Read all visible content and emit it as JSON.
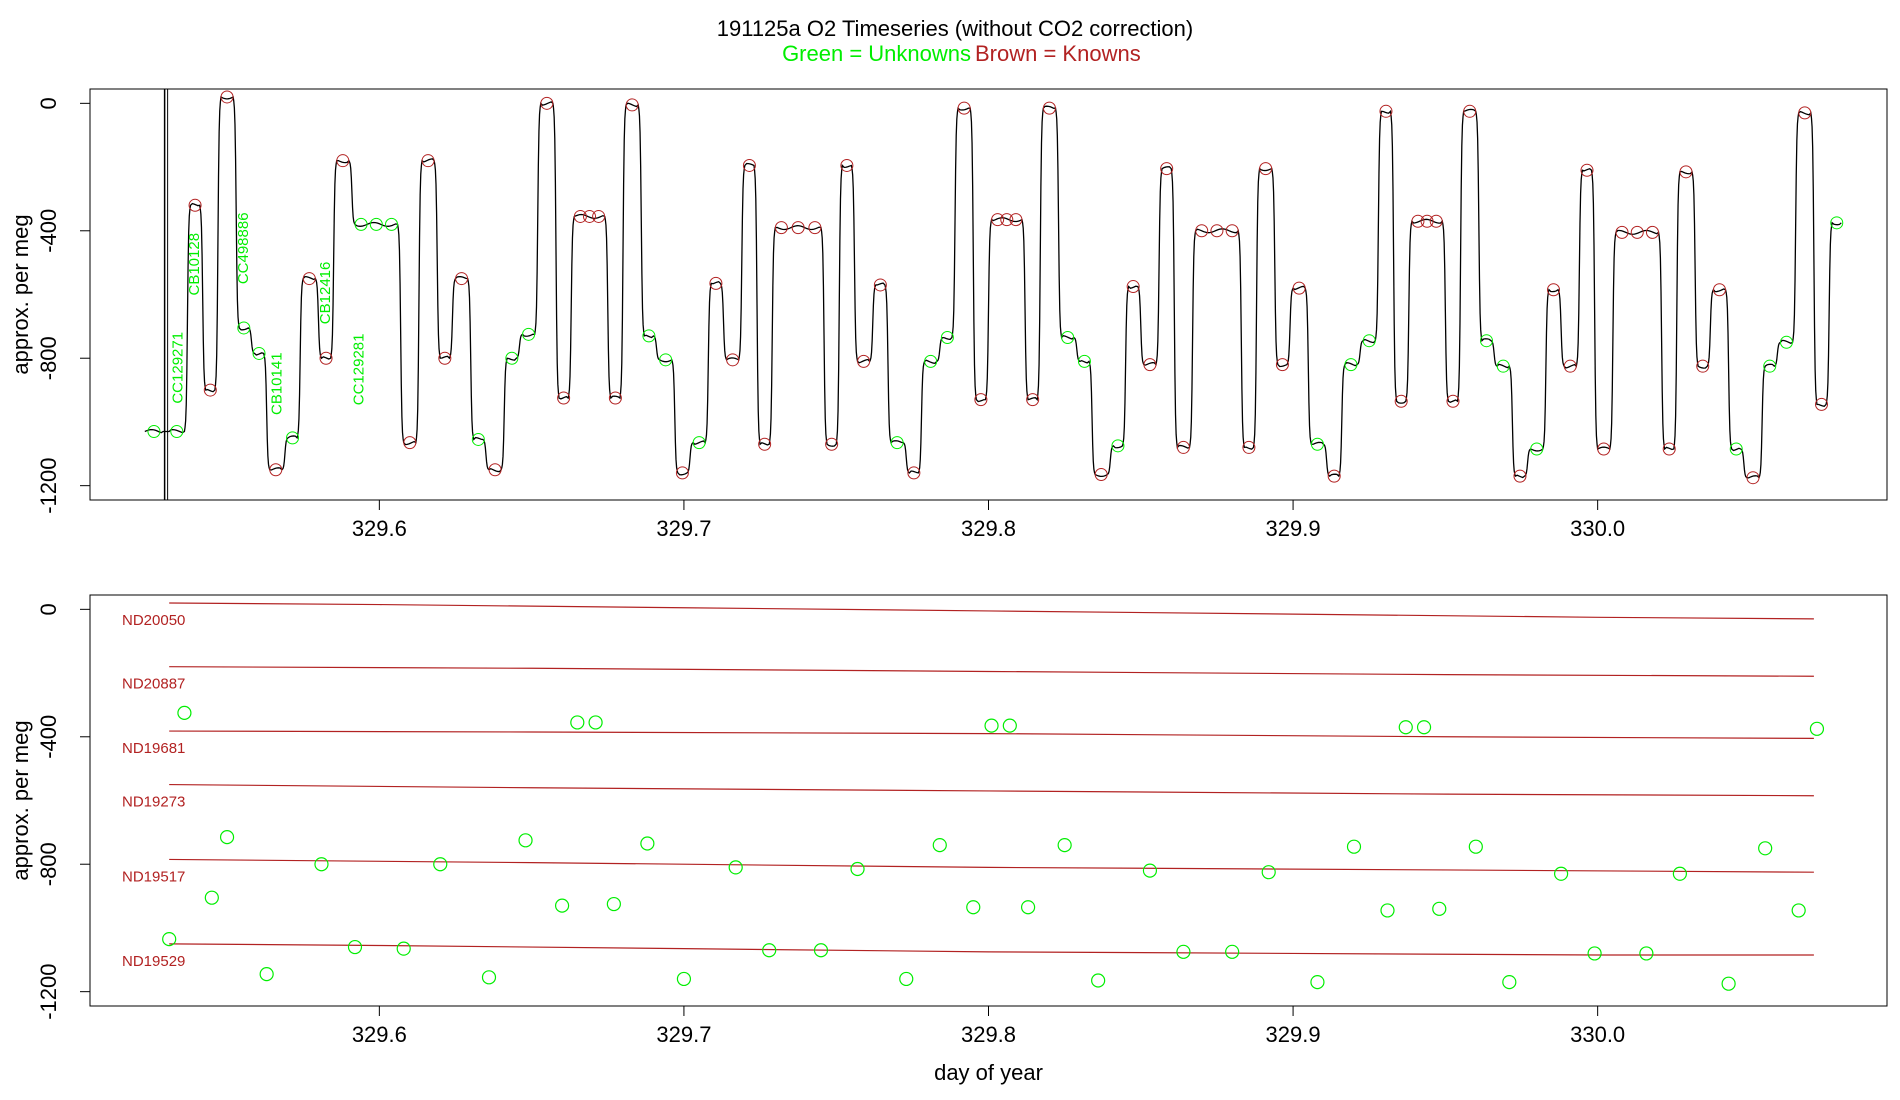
{
  "title": {
    "main": "191125a   O2 Timeseries (without CO2 correction)",
    "legend_green": "Green = Unknowns",
    "legend_brown": "Brown = Knowns"
  },
  "colors": {
    "unknown": "#00ee00",
    "known": "#b22222",
    "trace": "#000000",
    "axis": "#000000"
  },
  "chart_data": [
    {
      "type": "line",
      "title": "191125a   O2 Timeseries (without CO2 correction)",
      "xlabel": "",
      "ylabel": "approx. per meg",
      "xlim": [
        329.505,
        330.095
      ],
      "ylim": [
        -1245,
        45
      ],
      "xticks": [
        329.6,
        329.7,
        329.8,
        329.9,
        330.0
      ],
      "xtick_labels": [
        "329.6",
        "329.7",
        "329.8",
        "329.9",
        "330.0"
      ],
      "yticks": [
        0,
        -400,
        -800,
        -1200
      ],
      "ytick_labels": [
        "0",
        "-400",
        "-800",
        "-1200"
      ],
      "segments": [
        [
          329.523,
          329.529,
          -1030
        ],
        [
          329.531,
          329.536,
          -1030
        ],
        [
          329.538,
          329.541,
          -320
        ],
        [
          329.543,
          329.546,
          -900
        ],
        [
          329.548,
          329.552,
          20
        ],
        [
          329.554,
          329.557,
          -705
        ],
        [
          329.559,
          329.562,
          -785
        ],
        [
          329.564,
          329.568,
          -1150
        ],
        [
          329.57,
          329.573,
          -1050
        ],
        [
          329.575,
          329.579,
          -550
        ],
        [
          329.581,
          329.584,
          -800
        ],
        [
          329.586,
          329.59,
          -180
        ],
        [
          329.592,
          329.606,
          -380
        ],
        [
          329.608,
          329.612,
          -1065
        ],
        [
          329.614,
          329.618,
          -180
        ],
        [
          329.62,
          329.623,
          -800
        ],
        [
          329.625,
          329.629,
          -550
        ],
        [
          329.631,
          329.634,
          -1055
        ],
        [
          329.636,
          329.64,
          -1150
        ],
        [
          329.642,
          329.645,
          -800
        ],
        [
          329.647,
          329.651,
          -725
        ],
        [
          329.653,
          329.657,
          0
        ],
        [
          329.659,
          329.662,
          -925
        ],
        [
          329.664,
          329.674,
          -355
        ],
        [
          329.676,
          329.679,
          -925
        ],
        [
          329.681,
          329.685,
          -5
        ],
        [
          329.687,
          329.69,
          -730
        ],
        [
          329.692,
          329.696,
          -805
        ],
        [
          329.698,
          329.701,
          -1160
        ],
        [
          329.703,
          329.707,
          -1065
        ],
        [
          329.709,
          329.712,
          -565
        ],
        [
          329.714,
          329.718,
          -805
        ],
        [
          329.72,
          329.723,
          -195
        ],
        [
          329.725,
          329.728,
          -1070
        ],
        [
          329.73,
          329.745,
          -390
        ],
        [
          329.747,
          329.75,
          -1070
        ],
        [
          329.752,
          329.755,
          -195
        ],
        [
          329.757,
          329.761,
          -810
        ],
        [
          329.763,
          329.766,
          -570
        ],
        [
          329.768,
          329.772,
          -1065
        ],
        [
          329.774,
          329.777,
          -1160
        ],
        [
          329.779,
          329.783,
          -810
        ],
        [
          329.785,
          329.788,
          -735
        ],
        [
          329.79,
          329.794,
          -15
        ],
        [
          329.796,
          329.799,
          -930
        ],
        [
          329.801,
          329.811,
          -365
        ],
        [
          329.813,
          329.816,
          -930
        ],
        [
          329.818,
          329.822,
          -15
        ],
        [
          329.824,
          329.828,
          -735
        ],
        [
          329.83,
          329.833,
          -810
        ],
        [
          329.835,
          329.839,
          -1165
        ],
        [
          329.841,
          329.844,
          -1075
        ],
        [
          329.846,
          329.849,
          -575
        ],
        [
          329.851,
          329.855,
          -820
        ],
        [
          329.857,
          329.86,
          -205
        ],
        [
          329.862,
          329.866,
          -1080
        ],
        [
          329.868,
          329.882,
          -400
        ],
        [
          329.884,
          329.887,
          -1080
        ],
        [
          329.889,
          329.893,
          -205
        ],
        [
          329.895,
          329.898,
          -820
        ],
        [
          329.9,
          329.904,
          -580
        ],
        [
          329.906,
          329.91,
          -1070
        ],
        [
          329.912,
          329.915,
          -1170
        ],
        [
          329.917,
          329.921,
          -820
        ],
        [
          329.923,
          329.927,
          -745
        ],
        [
          329.929,
          329.932,
          -25
        ],
        [
          329.934,
          329.937,
          -935
        ],
        [
          329.939,
          329.949,
          -370
        ],
        [
          329.951,
          329.954,
          -935
        ],
        [
          329.956,
          329.96,
          -25
        ],
        [
          329.962,
          329.965,
          -745
        ],
        [
          329.967,
          329.971,
          -825
        ],
        [
          329.973,
          329.976,
          -1170
        ],
        [
          329.978,
          329.982,
          -1085
        ],
        [
          329.984,
          329.987,
          -585
        ],
        [
          329.989,
          329.993,
          -825
        ],
        [
          329.995,
          329.998,
          -210
        ],
        [
          330.0,
          330.004,
          -1085
        ],
        [
          330.006,
          330.02,
          -405
        ],
        [
          330.022,
          330.025,
          -1085
        ],
        [
          330.027,
          330.031,
          -215
        ],
        [
          330.033,
          330.036,
          -825
        ],
        [
          330.038,
          330.042,
          -585
        ],
        [
          330.044,
          330.047,
          -1085
        ],
        [
          330.049,
          330.053,
          -1175
        ],
        [
          330.055,
          330.058,
          -825
        ],
        [
          330.06,
          330.064,
          -750
        ],
        [
          330.066,
          330.07,
          -30
        ],
        [
          330.072,
          330.075,
          -945
        ],
        [
          330.077,
          330.08,
          -375
        ]
      ],
      "spike": {
        "x": 329.5295,
        "top": 45,
        "bottom": -1245
      },
      "point_labels": [
        {
          "text": "CC129271",
          "x": 329.534,
          "y": -830
        },
        {
          "text": "CB10128",
          "x": 329.5395,
          "y": -505
        },
        {
          "text": "CC498886",
          "x": 329.5555,
          "y": -455
        },
        {
          "text": "CB10141",
          "x": 329.5665,
          "y": -880
        },
        {
          "text": "CB12416",
          "x": 329.5825,
          "y": -595
        },
        {
          "text": "CC129281",
          "x": 329.5935,
          "y": -835
        }
      ]
    },
    {
      "type": "scatter",
      "xlabel": "day of year",
      "ylabel": "approx. per meg",
      "xlim": [
        329.505,
        330.095
      ],
      "ylim": [
        -1245,
        45
      ],
      "xticks": [
        329.6,
        329.7,
        329.8,
        329.9,
        330.0
      ],
      "xtick_labels": [
        "329.6",
        "329.7",
        "329.8",
        "329.9",
        "330.0"
      ],
      "yticks": [
        0,
        -400,
        -800,
        -1200
      ],
      "ytick_labels": [
        "0",
        "-400",
        "-800",
        "-1200"
      ],
      "knowns": [
        {
          "name": "ND20050",
          "x": [
            329.531,
            329.6,
            329.7,
            329.8,
            329.9,
            330.0,
            330.071
          ],
          "y": [
            20,
            15,
            5,
            -5,
            -15,
            -25,
            -30
          ]
        },
        {
          "name": "ND20887",
          "x": [
            329.531,
            329.65,
            329.8,
            329.95,
            330.071
          ],
          "y": [
            -180,
            -185,
            -195,
            -205,
            -210
          ]
        },
        {
          "name": "ND19681",
          "x": [
            329.531,
            329.65,
            329.8,
            329.95,
            330.071
          ],
          "y": [
            -382,
            -385,
            -390,
            -400,
            -405
          ]
        },
        {
          "name": "ND19273",
          "x": [
            329.531,
            329.65,
            329.8,
            329.95,
            330.071
          ],
          "y": [
            -550,
            -560,
            -570,
            -580,
            -585
          ]
        },
        {
          "name": "ND19517",
          "x": [
            329.531,
            329.65,
            329.8,
            329.95,
            330.071
          ],
          "y": [
            -785,
            -795,
            -810,
            -818,
            -825
          ]
        },
        {
          "name": "ND19529",
          "x": [
            329.531,
            329.6,
            329.7,
            329.8,
            329.9,
            330.0,
            330.071
          ],
          "y": [
            -1050,
            -1055,
            -1065,
            -1075,
            -1080,
            -1085,
            -1085
          ]
        }
      ],
      "unknowns": {
        "x": [
          329.531,
          329.536,
          329.545,
          329.55,
          329.563,
          329.581,
          329.592,
          329.608,
          329.62,
          329.636,
          329.648,
          329.66,
          329.665,
          329.671,
          329.677,
          329.688,
          329.7,
          329.717,
          329.728,
          329.745,
          329.757,
          329.773,
          329.784,
          329.795,
          329.801,
          329.807,
          329.813,
          329.825,
          329.836,
          329.853,
          329.864,
          329.88,
          329.892,
          329.908,
          329.92,
          329.931,
          329.937,
          329.943,
          329.948,
          329.96,
          329.971,
          329.988,
          329.999,
          330.016,
          330.027,
          330.043,
          330.055,
          330.066,
          330.072
        ],
        "y": [
          -1035,
          -325,
          -905,
          -715,
          -1145,
          -800,
          -1060,
          -1065,
          -800,
          -1155,
          -725,
          -930,
          -355,
          -355,
          -925,
          -735,
          -1160,
          -810,
          -1070,
          -1070,
          -815,
          -1160,
          -740,
          -935,
          -365,
          -365,
          -935,
          -740,
          -1165,
          -820,
          -1075,
          -1075,
          -825,
          -1170,
          -745,
          -945,
          -370,
          -370,
          -940,
          -745,
          -1170,
          -830,
          -1080,
          -1080,
          -830,
          -1175,
          -750,
          -945,
          -375
        ]
      }
    }
  ]
}
